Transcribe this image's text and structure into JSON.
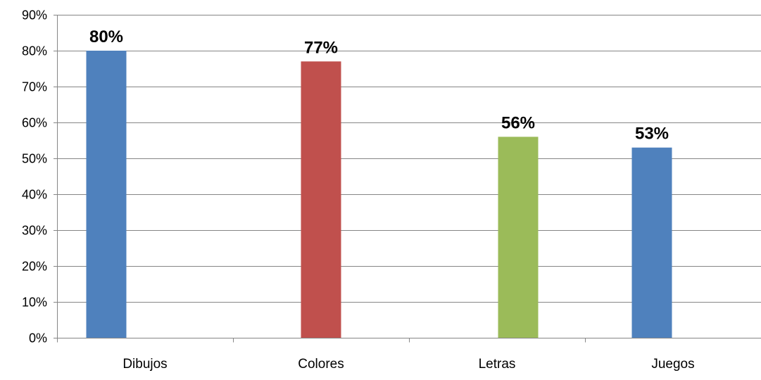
{
  "chart_data": {
    "type": "bar",
    "title": "",
    "xlabel": "",
    "ylabel": "",
    "ylim": [
      0,
      90
    ],
    "y_ticks": [
      0,
      10,
      20,
      30,
      40,
      50,
      60,
      70,
      80,
      90
    ],
    "y_tick_labels": [
      "0%",
      "10%",
      "20%",
      "30%",
      "40%",
      "50%",
      "60%",
      "70%",
      "80%",
      "90%"
    ],
    "grid": true,
    "legend": "none",
    "categories": [
      "Dibujos",
      "Colores",
      "Letras",
      "Juegos"
    ],
    "values": [
      80,
      77,
      56,
      53
    ],
    "data_labels": [
      "80%",
      "77%",
      "56%",
      "53%"
    ],
    "bar_colors": [
      "#4F81BD",
      "#C0504D",
      "#9BBB59",
      "#4F81BD"
    ],
    "gridline_color": "#868686",
    "axis_color": "#868686",
    "text_color": "#000000"
  }
}
